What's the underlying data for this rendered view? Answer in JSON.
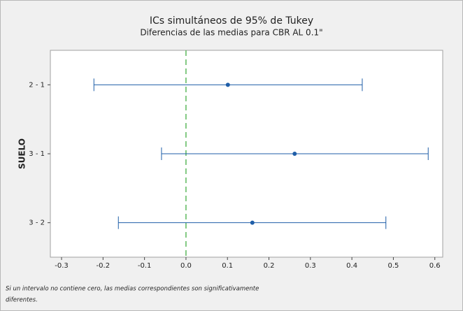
{
  "chart_data": {
    "type": "interval",
    "title": "ICs simultáneos de 95% de Tukey",
    "subtitle": "Diferencias de las medias para CBR AL 0.1\"",
    "ylabel": "SUELO",
    "categories": [
      "2 - 1",
      "3 - 1",
      "3 - 2"
    ],
    "values": [
      0.101,
      0.262,
      0.16
    ],
    "lower": [
      -0.222,
      -0.059,
      -0.163
    ],
    "upper": [
      0.425,
      0.584,
      0.482
    ],
    "color": "#1f5ea8",
    "reference_line": 0,
    "reference_color": "#5cb85c",
    "xlim": [
      -0.327,
      0.619
    ],
    "xticks": [
      -0.3,
      -0.2,
      -0.1,
      {
        "value": 0,
        "label": "0.0"
      },
      0.1,
      0.2,
      0.3,
      0.4,
      0.5,
      0.6
    ],
    "footnote": [
      "Si un intervalo no contiene cero, las medias correspondientes son significativamente",
      "diferentes."
    ]
  }
}
